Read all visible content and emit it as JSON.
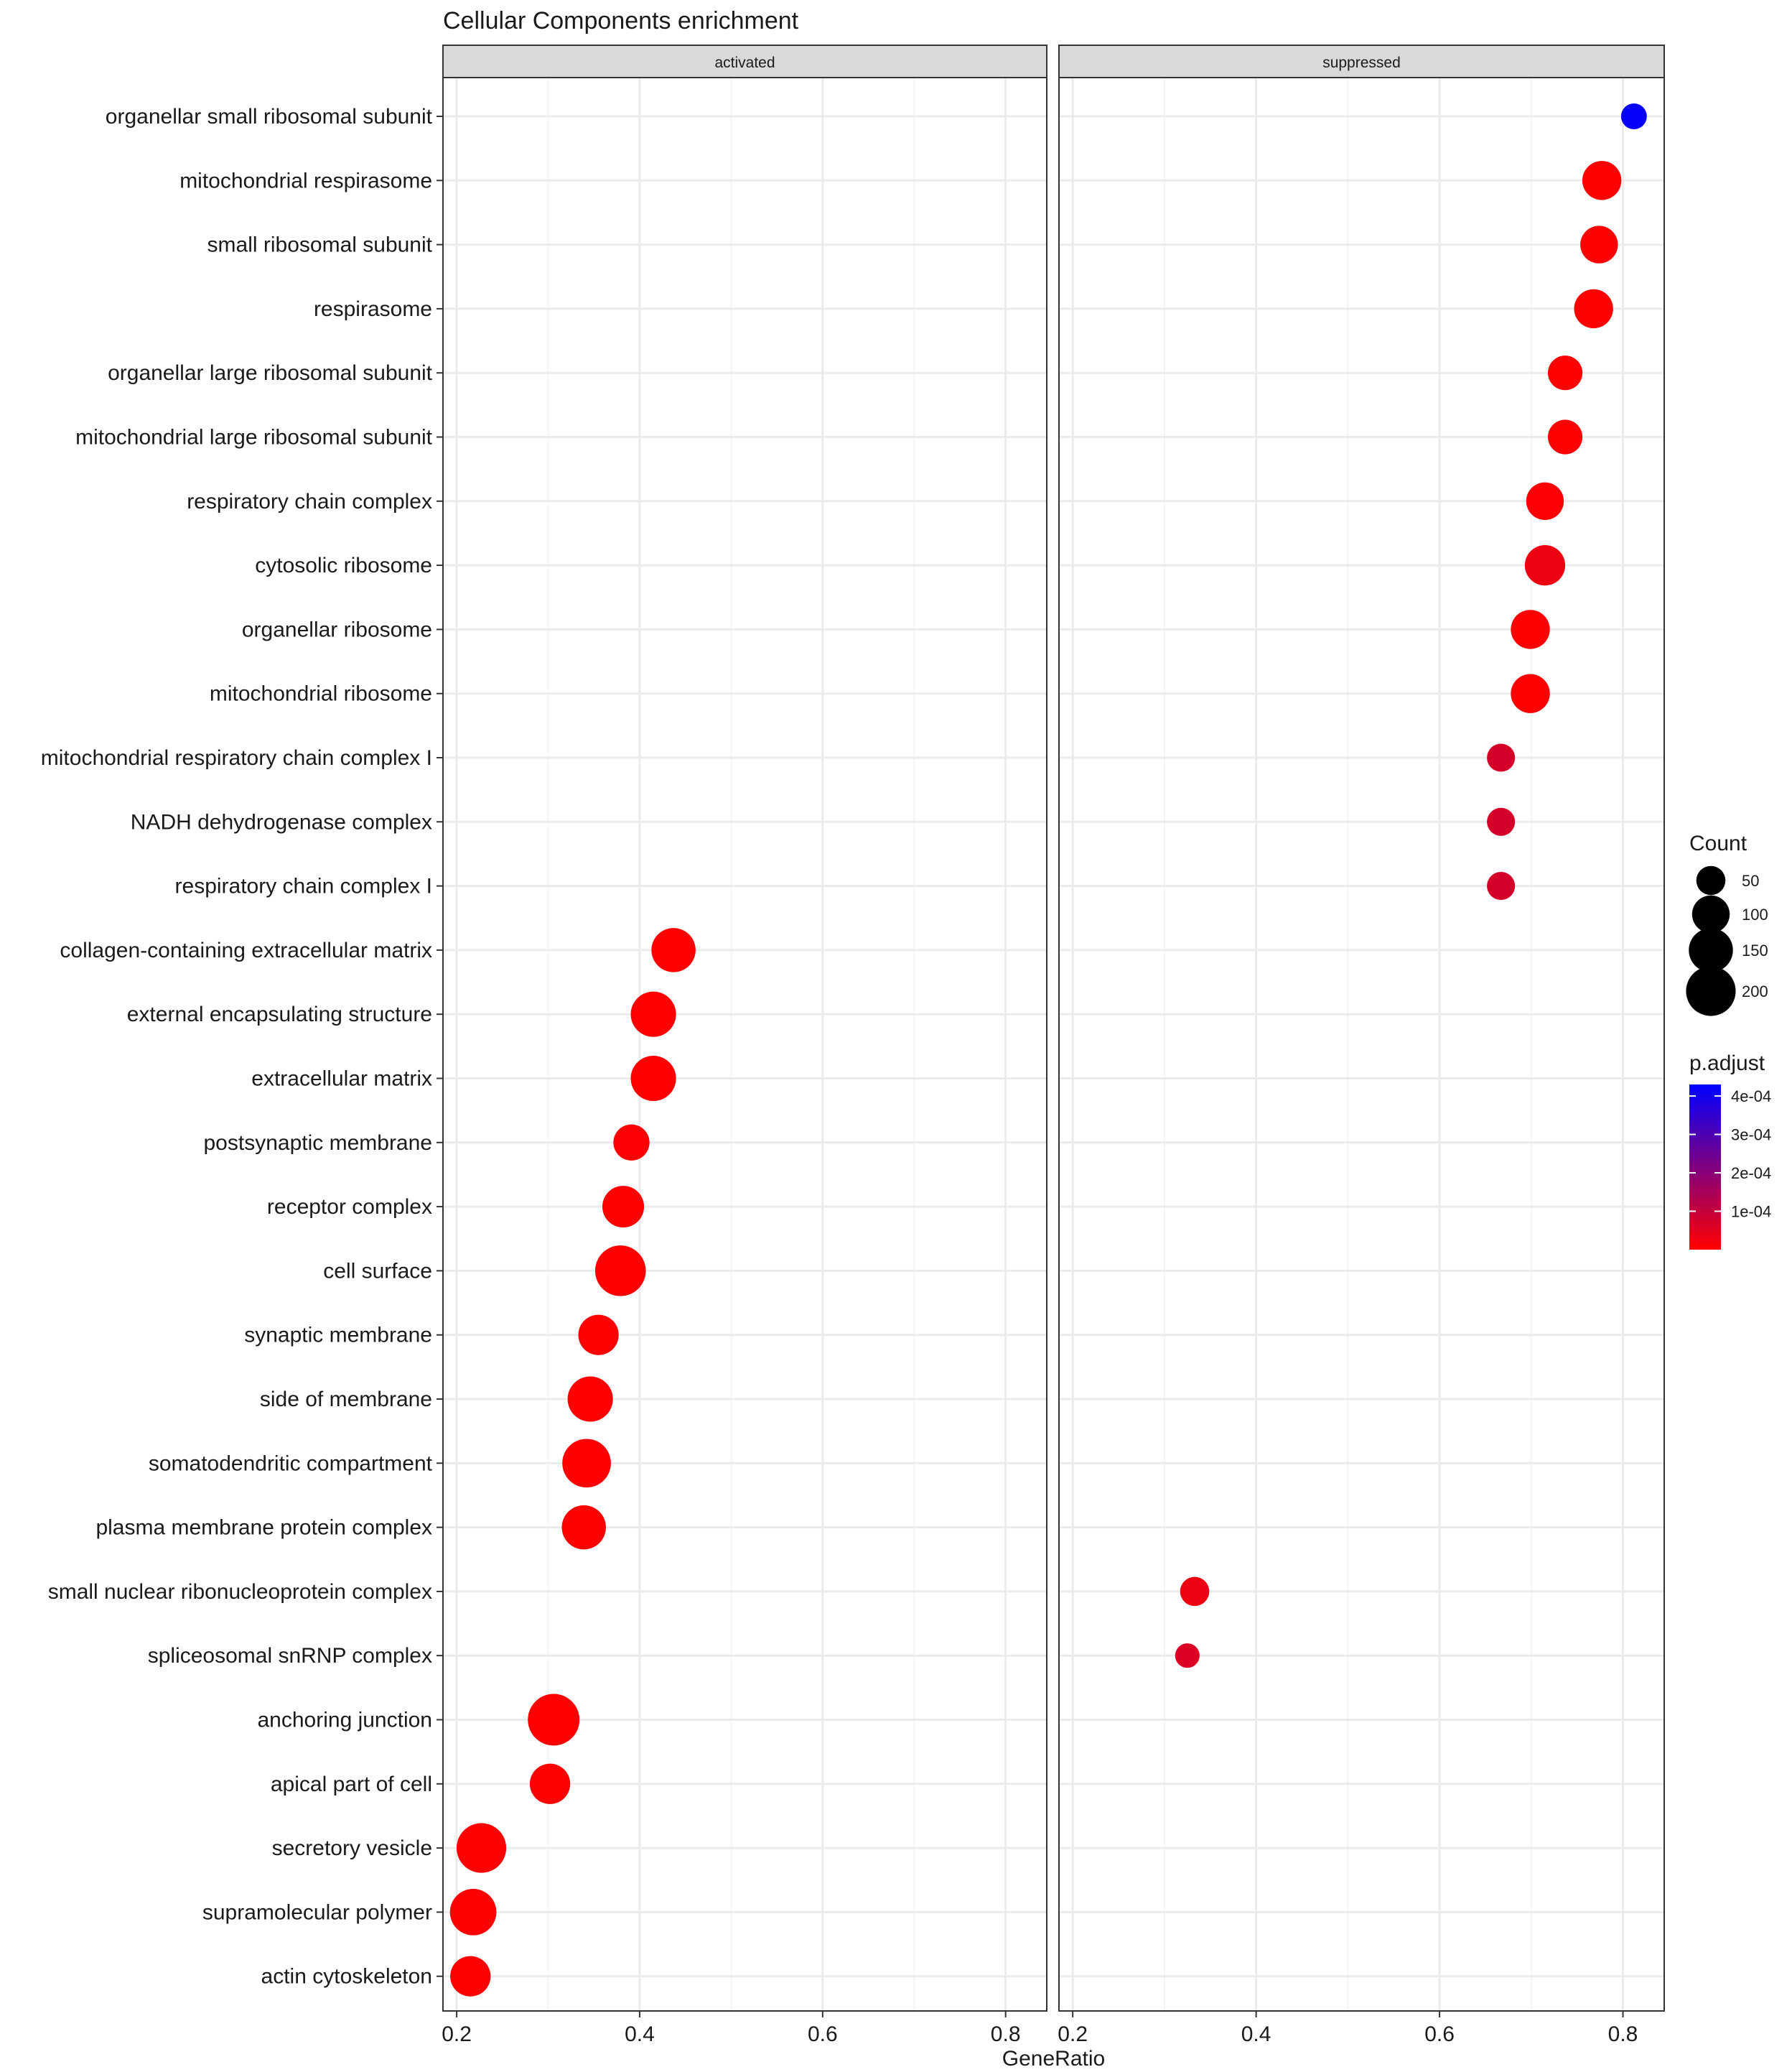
{
  "chart_data": {
    "type": "scatter",
    "title": "Cellular Components enrichment",
    "xlabel": "GeneRatio",
    "ylabel": "",
    "xlim": [
      0.185,
      0.845
    ],
    "xticks": [
      0.2,
      0.4,
      0.6,
      0.8
    ],
    "xtick_labels": [
      "0.2",
      "0.4",
      "0.6",
      "0.8"
    ],
    "grid": true,
    "facets": [
      "activated",
      "suppressed"
    ],
    "categories": [
      "organellar small ribosomal subunit",
      "mitochondrial respirasome",
      "small ribosomal subunit",
      "respirasome",
      "organellar large ribosomal subunit",
      "mitochondrial large ribosomal subunit",
      "respiratory chain complex",
      "cytosolic ribosome",
      "organellar ribosome",
      "mitochondrial ribosome",
      "mitochondrial respiratory chain complex I",
      "NADH dehydrogenase complex",
      "respiratory chain complex I",
      "collagen-containing extracellular matrix",
      "external encapsulating structure",
      "extracellular matrix",
      "postsynaptic membrane",
      "receptor complex",
      "cell surface",
      "synaptic membrane",
      "side of membrane",
      "somatodendritic compartment",
      "plasma membrane protein complex",
      "small nuclear ribonucleoprotein complex",
      "spliceosomal snRNP complex",
      "anchoring junction",
      "apical part of cell",
      "secretory vesicle",
      "supramolecular polymer",
      "actin cytoskeleton"
    ],
    "series": [
      {
        "name": "activated",
        "points": [
          {
            "category": "collagen-containing extracellular matrix",
            "x": 0.437,
            "count": 150,
            "p_adjust": 1e-06
          },
          {
            "category": "external encapsulating structure",
            "x": 0.415,
            "count": 160,
            "p_adjust": 1e-06
          },
          {
            "category": "extracellular matrix",
            "x": 0.415,
            "count": 160,
            "p_adjust": 1e-06
          },
          {
            "category": "postsynaptic membrane",
            "x": 0.391,
            "count": 90,
            "p_adjust": 5e-06
          },
          {
            "category": "receptor complex",
            "x": 0.382,
            "count": 130,
            "p_adjust": 3e-06
          },
          {
            "category": "cell surface",
            "x": 0.379,
            "count": 210,
            "p_adjust": 1e-06
          },
          {
            "category": "synaptic membrane",
            "x": 0.355,
            "count": 120,
            "p_adjust": 4e-06
          },
          {
            "category": "side of membrane",
            "x": 0.346,
            "count": 160,
            "p_adjust": 2e-06
          },
          {
            "category": "somatodendritic compartment",
            "x": 0.342,
            "count": 190,
            "p_adjust": 2e-06
          },
          {
            "category": "plasma membrane protein complex",
            "x": 0.339,
            "count": 150,
            "p_adjust": 3e-06
          },
          {
            "category": "anchoring junction",
            "x": 0.306,
            "count": 220,
            "p_adjust": 2e-06
          },
          {
            "category": "apical part of cell",
            "x": 0.302,
            "count": 120,
            "p_adjust": 4e-06
          },
          {
            "category": "secretory vesicle",
            "x": 0.227,
            "count": 200,
            "p_adjust": 3e-06
          },
          {
            "category": "supramolecular polymer",
            "x": 0.218,
            "count": 170,
            "p_adjust": 4e-06
          },
          {
            "category": "actin cytoskeleton",
            "x": 0.215,
            "count": 120,
            "p_adjust": 4e-06
          }
        ]
      },
      {
        "name": "suppressed",
        "points": [
          {
            "category": "organellar small ribosomal subunit",
            "x": 0.812,
            "count": 35,
            "p_adjust": 0.00042
          },
          {
            "category": "mitochondrial respirasome",
            "x": 0.777,
            "count": 110,
            "p_adjust": 3e-06
          },
          {
            "category": "small ribosomal subunit",
            "x": 0.774,
            "count": 100,
            "p_adjust": 3e-06
          },
          {
            "category": "respirasome",
            "x": 0.768,
            "count": 110,
            "p_adjust": 3e-06
          },
          {
            "category": "organellar large ribosomal subunit",
            "x": 0.737,
            "count": 80,
            "p_adjust": 4e-06
          },
          {
            "category": "mitochondrial large ribosomal subunit",
            "x": 0.737,
            "count": 80,
            "p_adjust": 4e-06
          },
          {
            "category": "respiratory chain complex",
            "x": 0.715,
            "count": 100,
            "p_adjust": 5e-06
          },
          {
            "category": "cytosolic ribosome",
            "x": 0.715,
            "count": 120,
            "p_adjust": 3e-05
          },
          {
            "category": "organellar ribosome",
            "x": 0.699,
            "count": 110,
            "p_adjust": 4e-06
          },
          {
            "category": "mitochondrial ribosome",
            "x": 0.699,
            "count": 110,
            "p_adjust": 4e-06
          },
          {
            "category": "mitochondrial respiratory chain complex I",
            "x": 0.667,
            "count": 45,
            "p_adjust": 7e-05
          },
          {
            "category": "NADH dehydrogenase complex",
            "x": 0.667,
            "count": 45,
            "p_adjust": 7e-05
          },
          {
            "category": "respiratory chain complex I",
            "x": 0.667,
            "count": 45,
            "p_adjust": 7e-05
          },
          {
            "category": "small nuclear ribonucleoprotein complex",
            "x": 0.333,
            "count": 50,
            "p_adjust": 3e-05
          },
          {
            "category": "spliceosomal snRNP complex",
            "x": 0.325,
            "count": 30,
            "p_adjust": 6e-05
          }
        ]
      }
    ],
    "legend_size": {
      "title": "Count",
      "entries": [
        {
          "label": "50",
          "value": 50
        },
        {
          "label": "100",
          "value": 100
        },
        {
          "label": "150",
          "value": 150
        },
        {
          "label": "200",
          "value": 200
        }
      ]
    },
    "legend_color": {
      "title": "p.adjust",
      "low_color": "#ff0000",
      "high_color": "#0000ff",
      "range": [
        0.0,
        0.00043
      ],
      "ticks": [
        {
          "label": "1e-04",
          "value": 0.0001
        },
        {
          "label": "2e-04",
          "value": 0.0002
        },
        {
          "label": "3e-04",
          "value": 0.0003
        },
        {
          "label": "4e-04",
          "value": 0.0004
        }
      ]
    },
    "colors": {
      "strip_fill": "#d9d9d9",
      "panel_border": "#333333",
      "grid_major": "#ebebeb",
      "grid_minor": "#f5f5f5",
      "text": "#1a1a1a"
    }
  }
}
